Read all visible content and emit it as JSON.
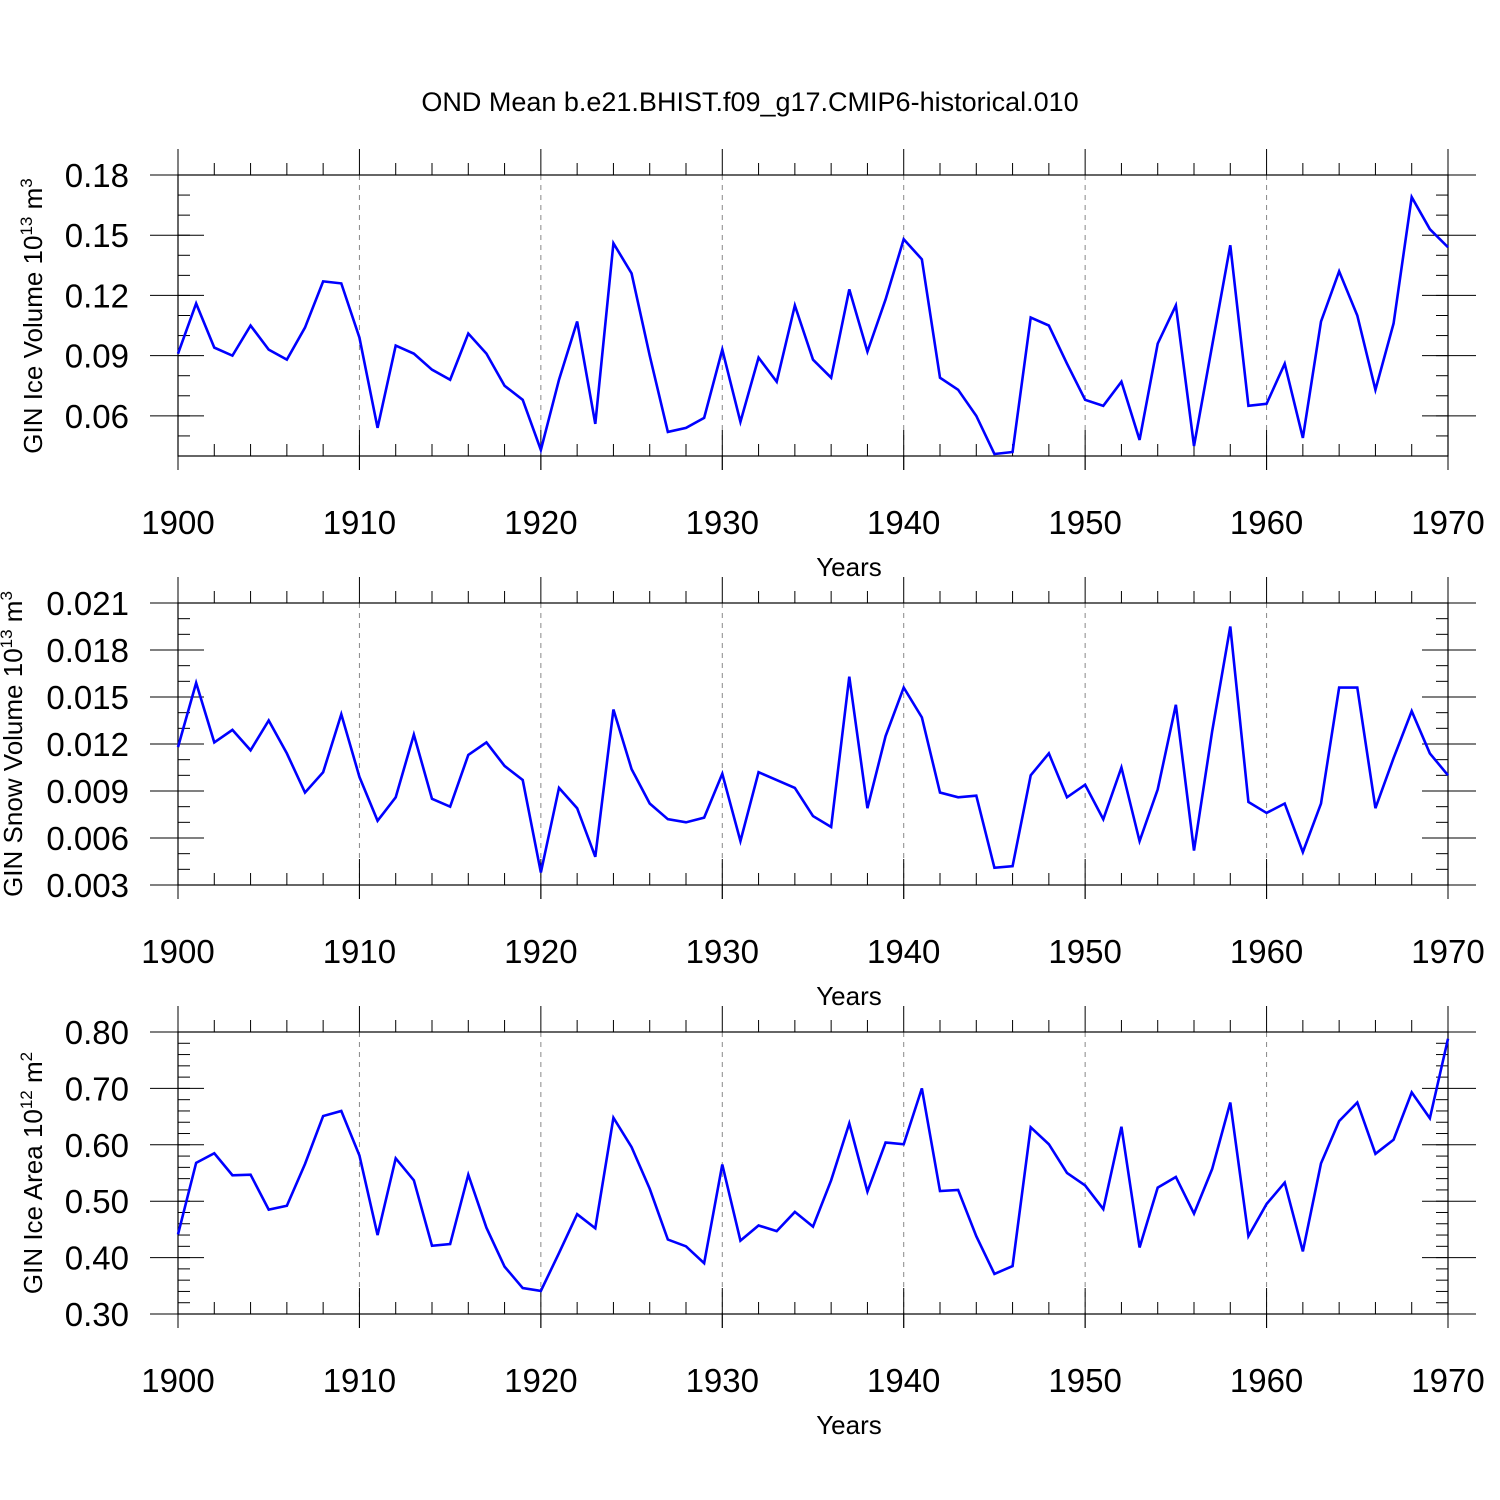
{
  "title": "OND Mean b.e21.BHIST.f09_g17.CMIP6-historical.010",
  "chart_data": [
    {
      "type": "line",
      "xlabel": "Years",
      "ylabel_text": "GIN Ice Volume 10",
      "ylabel_exp": "13",
      "ylabel_unit": " m",
      "ylabel_unit_exp": "3",
      "xlim": [
        1900,
        1970
      ],
      "ylim": [
        0.04,
        0.18
      ],
      "xticks": [
        1900,
        1910,
        1920,
        1930,
        1940,
        1950,
        1960,
        1970
      ],
      "xtick_labels": [
        "1900",
        "1910",
        "1920",
        "1930",
        "1940",
        "1950",
        "1960",
        "1970"
      ],
      "yticks": [
        0.06,
        0.09,
        0.12,
        0.15,
        0.18
      ],
      "ytick_labels": [
        "0.06",
        "0.09",
        "0.12",
        "0.15",
        "0.18"
      ],
      "yminor_step": 0.01,
      "color": "#0000ff",
      "x": [
        1900,
        1901,
        1902,
        1903,
        1904,
        1905,
        1906,
        1907,
        1908,
        1909,
        1910,
        1911,
        1912,
        1913,
        1914,
        1915,
        1916,
        1917,
        1918,
        1919,
        1920,
        1921,
        1922,
        1923,
        1924,
        1925,
        1926,
        1927,
        1928,
        1929,
        1930,
        1931,
        1932,
        1933,
        1934,
        1935,
        1936,
        1937,
        1938,
        1939,
        1940,
        1941,
        1942,
        1943,
        1944,
        1945,
        1946,
        1947,
        1948,
        1949,
        1950,
        1951,
        1952,
        1953,
        1954,
        1955,
        1956,
        1957,
        1958,
        1959,
        1960,
        1961,
        1962,
        1963,
        1964,
        1965,
        1966,
        1967,
        1968,
        1969,
        1970
      ],
      "values": [
        0.091,
        0.116,
        0.094,
        0.09,
        0.105,
        0.093,
        0.088,
        0.104,
        0.127,
        0.126,
        0.099,
        0.054,
        0.095,
        0.091,
        0.083,
        0.078,
        0.101,
        0.091,
        0.075,
        0.068,
        0.043,
        0.078,
        0.107,
        0.056,
        0.146,
        0.131,
        0.09,
        0.052,
        0.054,
        0.059,
        0.093,
        0.057,
        0.089,
        0.077,
        0.115,
        0.088,
        0.079,
        0.123,
        0.092,
        0.118,
        0.148,
        0.138,
        0.079,
        0.073,
        0.06,
        0.041,
        0.042,
        0.109,
        0.105,
        0.086,
        0.068,
        0.065,
        0.077,
        0.048,
        0.096,
        0.115,
        0.045,
        0.095,
        0.145,
        0.065,
        0.066,
        0.086,
        0.049,
        0.107,
        0.132,
        0.11,
        0.073,
        0.106,
        0.169,
        0.153,
        0.144
      ]
    },
    {
      "type": "line",
      "xlabel": "Years",
      "ylabel_text": "GIN Snow Volume 10",
      "ylabel_exp": "13",
      "ylabel_unit": " m",
      "ylabel_unit_exp": "3",
      "xlim": [
        1900,
        1970
      ],
      "ylim": [
        0.003,
        0.021
      ],
      "xticks": [
        1900,
        1910,
        1920,
        1930,
        1940,
        1950,
        1960,
        1970
      ],
      "xtick_labels": [
        "1900",
        "1910",
        "1920",
        "1930",
        "1940",
        "1950",
        "1960",
        "1970"
      ],
      "yticks": [
        0.003,
        0.006,
        0.009,
        0.012,
        0.015,
        0.018,
        0.021
      ],
      "ytick_labels": [
        "0.003",
        "0.006",
        "0.009",
        "0.012",
        "0.015",
        "0.018",
        "0.021"
      ],
      "yminor_step": 0.001,
      "color": "#0000ff",
      "x": [
        1900,
        1901,
        1902,
        1903,
        1904,
        1905,
        1906,
        1907,
        1908,
        1909,
        1910,
        1911,
        1912,
        1913,
        1914,
        1915,
        1916,
        1917,
        1918,
        1919,
        1920,
        1921,
        1922,
        1923,
        1924,
        1925,
        1926,
        1927,
        1928,
        1929,
        1930,
        1931,
        1932,
        1933,
        1934,
        1935,
        1936,
        1937,
        1938,
        1939,
        1940,
        1941,
        1942,
        1943,
        1944,
        1945,
        1946,
        1947,
        1948,
        1949,
        1950,
        1951,
        1952,
        1953,
        1954,
        1955,
        1956,
        1957,
        1958,
        1959,
        1960,
        1961,
        1962,
        1963,
        1964,
        1965,
        1966,
        1967,
        1968,
        1969,
        1970
      ],
      "values": [
        0.0118,
        0.0159,
        0.0121,
        0.0129,
        0.0116,
        0.0135,
        0.0114,
        0.0089,
        0.0102,
        0.0139,
        0.0099,
        0.0071,
        0.0086,
        0.0126,
        0.0085,
        0.008,
        0.0113,
        0.0121,
        0.0106,
        0.0097,
        0.0038,
        0.0092,
        0.0079,
        0.0048,
        0.0142,
        0.0104,
        0.0082,
        0.0072,
        0.007,
        0.0073,
        0.0101,
        0.0058,
        0.0102,
        0.0097,
        0.0092,
        0.0074,
        0.0067,
        0.0163,
        0.0079,
        0.0125,
        0.0156,
        0.0137,
        0.0089,
        0.0086,
        0.0087,
        0.0041,
        0.0042,
        0.01,
        0.0114,
        0.0086,
        0.0094,
        0.0072,
        0.0105,
        0.0058,
        0.0091,
        0.0145,
        0.0052,
        0.0128,
        0.0195,
        0.0083,
        0.0076,
        0.0082,
        0.0051,
        0.0082,
        0.0156,
        0.0156,
        0.0079,
        0.0111,
        0.0141,
        0.0114,
        0.01
      ]
    },
    {
      "type": "line",
      "xlabel": "Years",
      "ylabel_text": "GIN Ice Area 10",
      "ylabel_exp": "12",
      "ylabel_unit": " m",
      "ylabel_unit_exp": "2",
      "xlim": [
        1900,
        1970
      ],
      "ylim": [
        0.3,
        0.8
      ],
      "xticks": [
        1900,
        1910,
        1920,
        1930,
        1940,
        1950,
        1960,
        1970
      ],
      "xtick_labels": [
        "1900",
        "1910",
        "1920",
        "1930",
        "1940",
        "1950",
        "1960",
        "1970"
      ],
      "yticks": [
        0.3,
        0.4,
        0.5,
        0.6,
        0.7,
        0.8
      ],
      "ytick_labels": [
        "0.30",
        "0.40",
        "0.50",
        "0.60",
        "0.70",
        "0.80"
      ],
      "yminor_step": 0.02,
      "color": "#0000ff",
      "x": [
        1900,
        1901,
        1902,
        1903,
        1904,
        1905,
        1906,
        1907,
        1908,
        1909,
        1910,
        1911,
        1912,
        1913,
        1914,
        1915,
        1916,
        1917,
        1918,
        1919,
        1920,
        1921,
        1922,
        1923,
        1924,
        1925,
        1926,
        1927,
        1928,
        1929,
        1930,
        1931,
        1932,
        1933,
        1934,
        1935,
        1936,
        1937,
        1938,
        1939,
        1940,
        1941,
        1942,
        1943,
        1944,
        1945,
        1946,
        1947,
        1948,
        1949,
        1950,
        1951,
        1952,
        1953,
        1954,
        1955,
        1956,
        1957,
        1958,
        1959,
        1960,
        1961,
        1962,
        1963,
        1964,
        1965,
        1966,
        1967,
        1968,
        1969,
        1970
      ],
      "values": [
        0.441,
        0.568,
        0.585,
        0.546,
        0.547,
        0.485,
        0.492,
        0.566,
        0.651,
        0.66,
        0.581,
        0.44,
        0.576,
        0.537,
        0.421,
        0.424,
        0.547,
        0.453,
        0.384,
        0.346,
        0.341,
        0.408,
        0.477,
        0.452,
        0.648,
        0.596,
        0.522,
        0.432,
        0.42,
        0.39,
        0.565,
        0.43,
        0.457,
        0.447,
        0.481,
        0.455,
        0.537,
        0.638,
        0.517,
        0.604,
        0.601,
        0.7,
        0.518,
        0.52,
        0.438,
        0.371,
        0.385,
        0.631,
        0.601,
        0.55,
        0.528,
        0.486,
        0.632,
        0.418,
        0.524,
        0.543,
        0.478,
        0.557,
        0.675,
        0.438,
        0.495,
        0.533,
        0.411,
        0.567,
        0.642,
        0.675,
        0.584,
        0.609,
        0.693,
        0.647,
        0.788
      ]
    }
  ]
}
